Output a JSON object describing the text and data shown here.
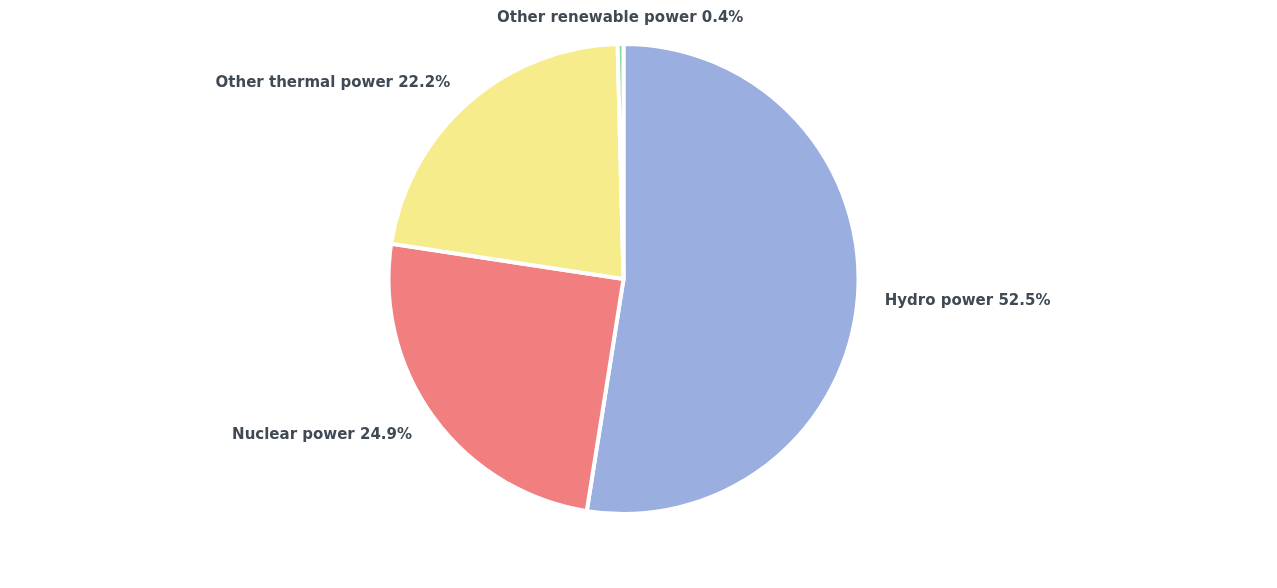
{
  "chart_data": {
    "type": "pie",
    "categories": [
      "Hydro power",
      "Nuclear power",
      "Other thermal power",
      "Other renewable power"
    ],
    "values": [
      52.5,
      24.9,
      22.2,
      0.4
    ],
    "value_labels": [
      "52.5%",
      "24.9%",
      "22.2%",
      "0.4%"
    ],
    "colors": [
      "#9aaee0",
      "#f27f7f",
      "#f7ec8c",
      "#8fd6a0"
    ],
    "legend": false
  }
}
